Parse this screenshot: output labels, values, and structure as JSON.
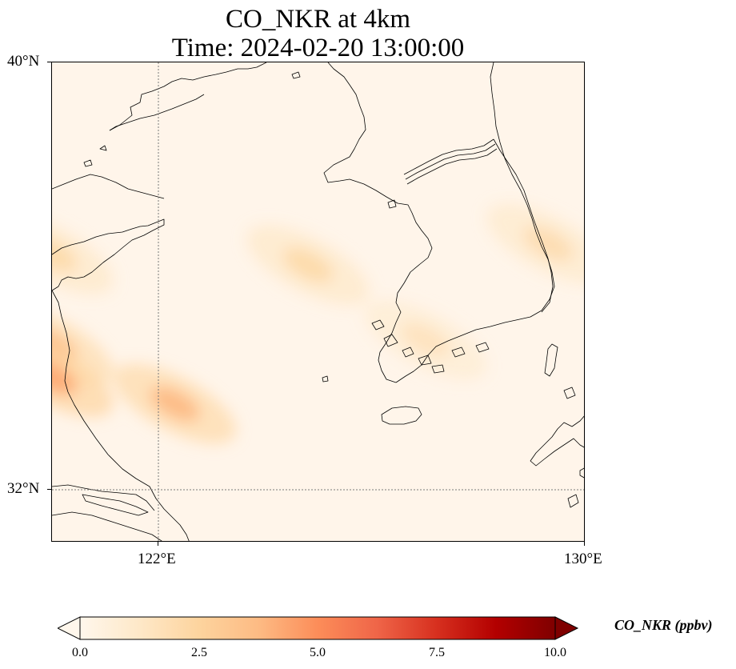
{
  "title": {
    "line1": "CO_NKR at 4km",
    "line2": "Time: 2024-02-20 13:00:00"
  },
  "map": {
    "lat_range": [
      31.0,
      40.0
    ],
    "lon_range": [
      120.0,
      130.0
    ],
    "gridlines": {
      "latitudes": [
        32
      ],
      "longitudes": [
        122
      ],
      "style": "dotted"
    },
    "lat_ticks": [
      "40°N",
      "32°N"
    ],
    "lon_ticks": [
      "122°E",
      "130°E"
    ],
    "plumes": [
      {
        "lat": 36.2,
        "lon": 124.8,
        "peak_ppbv": 2.2
      },
      {
        "lat": 34.8,
        "lon": 127.0,
        "peak_ppbv": 1.6
      },
      {
        "lat": 36.6,
        "lon": 129.3,
        "peak_ppbv": 2.0
      },
      {
        "lat": 33.6,
        "lon": 122.3,
        "peak_ppbv": 3.8
      },
      {
        "lat": 34.7,
        "lon": 120.0,
        "peak_ppbv": 3.5
      },
      {
        "lat": 34.1,
        "lon": 120.0,
        "peak_ppbv": 4.3
      },
      {
        "lat": 36.4,
        "lon": 120.0,
        "peak_ppbv": 2.2
      }
    ],
    "land_color": "#000000",
    "background_color": "#fff5ea"
  },
  "colorbar": {
    "colormap": "OrRd",
    "min": 0.0,
    "max": 10.0,
    "extend": "both",
    "ticks": [
      "0.0",
      "2.5",
      "5.0",
      "7.5",
      "10.0"
    ],
    "label": "CO_NKR (ppbv)",
    "stops": [
      "#fff7ec",
      "#fee8c8",
      "#fdd49e",
      "#fdbb84",
      "#fc8d59",
      "#ef6548",
      "#d7301f",
      "#b30000",
      "#7f0000"
    ]
  }
}
